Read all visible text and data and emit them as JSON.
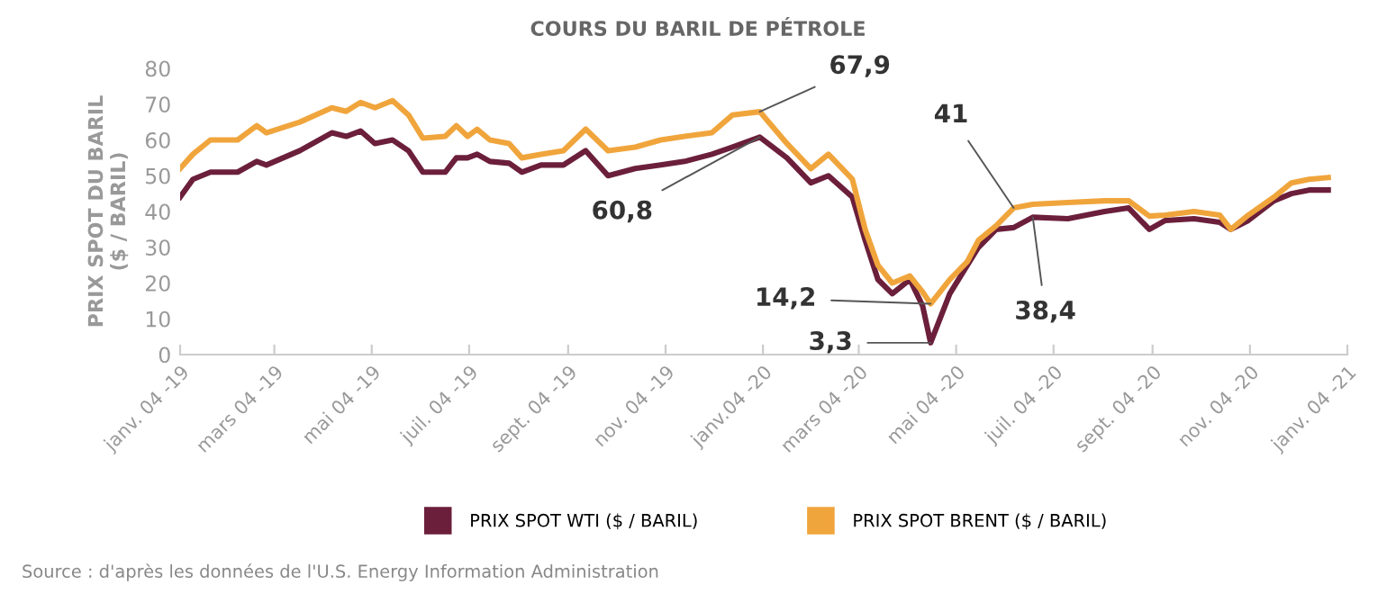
{
  "chart_data": {
    "type": "line",
    "title": "COURS DU BARIL DE PÉTROLE",
    "ylabel": "PRIX SPOT DU BARIL\n($ / BARIL)",
    "x": [
      "2019-01-04",
      "2019-01-12",
      "2019-01-23",
      "2019-02-09",
      "2019-02-21",
      "2019-02-27",
      "2019-03-20",
      "2019-04-09",
      "2019-04-18",
      "2019-04-27",
      "2019-05-06",
      "2019-05-17",
      "2019-05-27",
      "2019-06-05",
      "2019-06-19",
      "2019-06-26",
      "2019-07-03",
      "2019-07-09",
      "2019-07-17",
      "2019-07-29",
      "2019-08-06",
      "2019-08-18",
      "2019-09-01",
      "2019-09-15",
      "2019-09-29",
      "2019-10-16",
      "2019-11-01",
      "2019-11-16",
      "2019-12-03",
      "2019-12-16",
      "2020-01-02",
      "2020-01-19",
      "2020-02-03",
      "2020-02-14",
      "2020-02-29",
      "2020-03-08",
      "2020-03-16",
      "2020-03-25",
      "2020-04-05",
      "2020-04-13",
      "2020-04-18",
      "2020-04-30",
      "2020-05-11",
      "2020-05-18",
      "2020-05-29",
      "2020-06-09",
      "2020-06-21",
      "2020-07-13",
      "2020-08-05",
      "2020-08-20",
      "2020-09-02",
      "2020-09-12",
      "2020-09-30",
      "2020-10-16",
      "2020-10-23",
      "2020-11-03",
      "2020-11-19",
      "2020-11-30",
      "2020-12-11",
      "2020-12-23"
    ],
    "series": [
      {
        "name": "PRIX SPOT WTI ($ / BARIL)",
        "color": "#6b1f3a",
        "values": [
          44,
          49,
          51,
          51,
          54,
          53,
          57,
          62,
          61,
          62.5,
          59,
          60,
          57,
          51,
          51,
          55,
          55,
          56,
          54,
          53.5,
          51,
          53,
          53,
          57,
          50,
          52,
          53,
          54,
          56,
          58,
          60.8,
          55,
          48,
          50,
          44,
          32,
          21,
          17,
          21,
          13.6,
          3.3,
          17,
          25,
          30,
          35,
          35.5,
          38.4,
          38,
          40,
          41,
          35,
          37.5,
          38,
          37,
          35,
          37.5,
          43,
          45,
          46,
          46
        ]
      },
      {
        "name": "PRIX SPOT BRENT ($ / BARIL)",
        "color": "#f0a53c",
        "values": [
          52,
          56,
          60,
          60,
          64,
          62,
          65,
          69,
          68,
          70.5,
          69,
          71,
          67,
          60.5,
          61,
          64,
          61,
          63,
          60,
          59,
          55,
          56,
          57,
          63,
          57,
          58,
          60,
          61,
          62,
          67,
          67.9,
          59,
          52,
          56,
          49,
          35,
          25,
          20,
          22,
          17.5,
          14.2,
          21,
          26,
          32,
          36,
          41,
          42,
          42.5,
          43,
          43,
          38.7,
          39,
          40,
          39,
          35,
          39,
          44,
          48,
          49,
          49.5
        ]
      }
    ],
    "xlim": [
      "2019-01-04",
      "2021-01-04"
    ],
    "xticks": [
      {
        "value": "2019-01-04",
        "label": "janv. 04 -19"
      },
      {
        "value": "2019-03-04",
        "label": "mars 04 -19"
      },
      {
        "value": "2019-05-04",
        "label": "mai 04 -19"
      },
      {
        "value": "2019-07-04",
        "label": "juil. 04 -19"
      },
      {
        "value": "2019-09-04",
        "label": "sept. 04 -19"
      },
      {
        "value": "2019-11-04",
        "label": "nov. 04 -19"
      },
      {
        "value": "2020-01-04",
        "label": "janv.04 -20"
      },
      {
        "value": "2020-03-04",
        "label": "mars 04 -20"
      },
      {
        "value": "2020-05-04",
        "label": "mai 04 -20"
      },
      {
        "value": "2020-07-04",
        "label": "juil. 04 -20"
      },
      {
        "value": "2020-09-04",
        "label": "sept. 04 -20"
      },
      {
        "value": "2020-11-04",
        "label": "nov. 04 -20"
      },
      {
        "value": "2021-01-04",
        "label": "janv. 04 -21"
      }
    ],
    "ylim": [
      0,
      80
    ],
    "yticks": [
      0,
      10,
      20,
      30,
      40,
      50,
      60,
      70,
      80
    ],
    "grid": false,
    "legend": "bottom",
    "marker": "none",
    "line_style": "solid",
    "annotations": [
      {
        "text": "67,9",
        "x": "2020-01-02",
        "y": 67.9
      },
      {
        "text": "60,8",
        "x": "2020-01-02",
        "y": 60.8
      },
      {
        "text": "14,2",
        "x": "2020-04-18",
        "y": 14.2
      },
      {
        "text": "3,3",
        "x": "2020-04-18",
        "y": 3.3
      },
      {
        "text": "41",
        "x": "2020-06-09",
        "y": 41
      },
      {
        "text": "38,4",
        "x": "2020-06-21",
        "y": 38.4
      },
      "Source : d'après les données de l'U.S. Energy Information Administration"
    ]
  }
}
